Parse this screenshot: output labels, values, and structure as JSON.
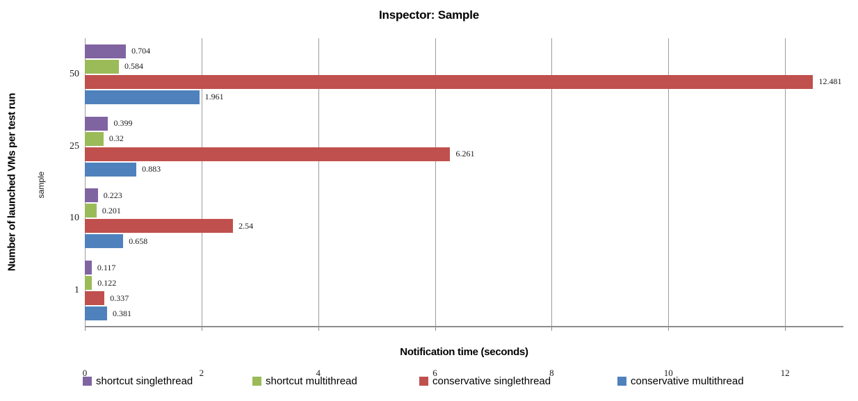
{
  "chart_data": {
    "type": "bar",
    "orientation": "horizontal",
    "title": "Inspector: Sample",
    "xlabel": "Notification time (seconds)",
    "ylabel": "Number of launched VMs per test run",
    "ylabel_secondary": "sample",
    "categories": [
      "50",
      "25",
      "10",
      "1"
    ],
    "xlim": [
      0,
      13
    ],
    "xticks": [
      0,
      2,
      4,
      6,
      8,
      10,
      12
    ],
    "grid": "vertical",
    "gridline_color": "#9c9c9c",
    "axis_line_color": "#8c8c8c",
    "legend_position": "bottom",
    "value_labels_shown": true,
    "series": [
      {
        "name": "shortcut singlethread",
        "color": "#8064A2",
        "values": [
          0.704,
          0.399,
          0.223,
          0.117
        ],
        "labels": [
          "0.704",
          "0.399",
          "0.223",
          "0.117"
        ]
      },
      {
        "name": "shortcut multithread",
        "color": "#9BBB59",
        "values": [
          0.584,
          0.32,
          0.201,
          0.122
        ],
        "labels": [
          "0.584",
          "0.32",
          "0.201",
          "0.122"
        ]
      },
      {
        "name": "conservative singlethread",
        "color": "#C0504D",
        "values": [
          12.481,
          6.261,
          2.54,
          0.337
        ],
        "labels": [
          "12.481",
          "6.261",
          "2.54",
          "0.337"
        ]
      },
      {
        "name": "conservative multithread",
        "color": "#4F81BD",
        "values": [
          1.961,
          0.883,
          0.658,
          0.381
        ],
        "labels": [
          "1.961",
          "0.883",
          "0.658",
          "0.381"
        ]
      }
    ]
  }
}
